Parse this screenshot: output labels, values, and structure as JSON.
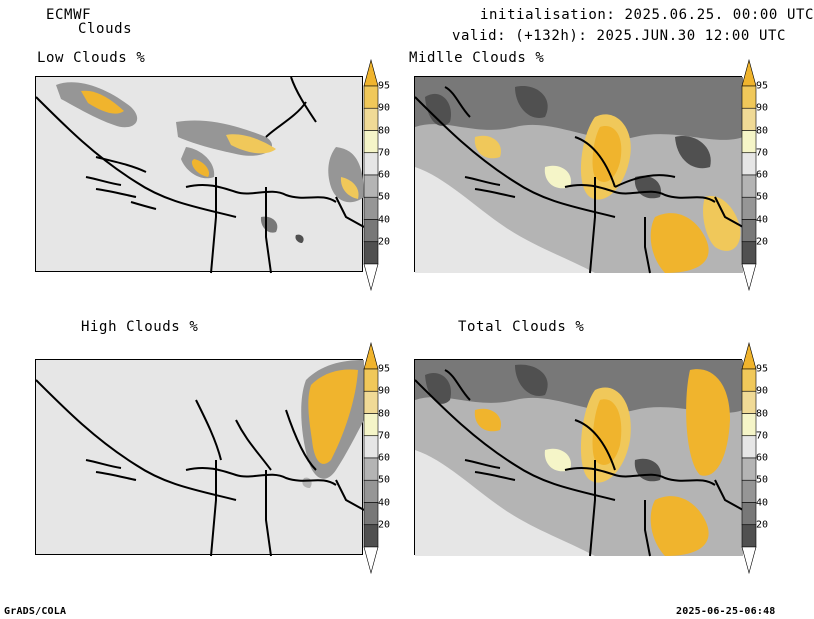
{
  "header": {
    "model": "ECMWF",
    "product": "Clouds",
    "init_line": "initialisation: 2025.06.25. 00:00 UTC",
    "valid_line": "valid: (+132h): 2025.JUN.30 12:00 UTC"
  },
  "panels": [
    {
      "title": "Low Clouds %"
    },
    {
      "title": "Midlle Clouds %"
    },
    {
      "title": "High Clouds %"
    },
    {
      "title": "Total Clouds %"
    }
  ],
  "legend": {
    "ticks": [
      "95",
      "90",
      "80",
      "70",
      "60",
      "50",
      "40",
      "20"
    ],
    "colors": [
      "#f0b42d",
      "#f0c85a",
      "#f0da96",
      "#f5f5c8",
      "#e6e6e6",
      "#b4b4b4",
      "#969696",
      "#787878",
      "#505050",
      "#ffffff"
    ]
  },
  "footer": {
    "left": "GrADS/COLA",
    "right": "2025-06-25-06:48"
  },
  "colors": {
    "land": "#e6e6e6",
    "high": "#f0b42d",
    "mid": "#f0c85a",
    "grey_dark": "#505050",
    "grey": "#969696"
  }
}
